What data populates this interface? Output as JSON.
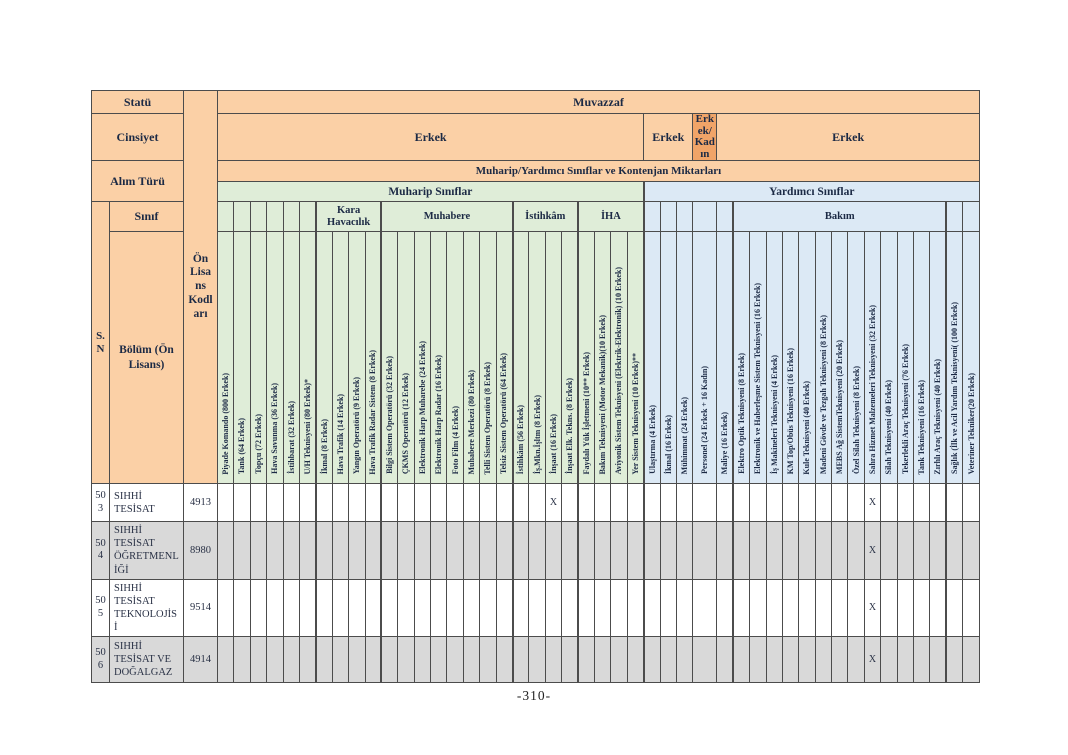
{
  "page": {
    "footer": "-310-"
  },
  "colors": {
    "header_bg": "#FBD0A6",
    "header_accent_bg": "#F0A468",
    "muharip_bg": "#DFEDD8",
    "yardimci_bg": "#DCE9F5",
    "shaded_row_bg": "#D9D9D9"
  },
  "left_headers": {
    "statu": "Statü",
    "cinsiyet": "Cinsiyet",
    "alim_turu": "Alım Türü",
    "sinif": "Sınıf",
    "sn": "S. N",
    "bolum": "Bölüm (Ön Lisans)",
    "on_lisans_kodlari": "Ön Lisans Kodları"
  },
  "top_headers": {
    "muvazzaf": "Muvazzaf",
    "gender_row": [
      {
        "label": "Erkek",
        "span": 26,
        "accent": false
      },
      {
        "label": "Erkek",
        "span": 3,
        "accent": false
      },
      {
        "label": "Erkek/ Kadın",
        "span": 1,
        "accent": true
      },
      {
        "label": "Erkek",
        "span": 16,
        "accent": false
      }
    ],
    "kontenjan": "Muharip/Yardımcı Sınıflar ve Kontenjan Miktarları",
    "class_row": [
      {
        "label": "Muharip Sınıflar",
        "span": 26,
        "section": "muharip"
      },
      {
        "label": "Yardımcı Sınıflar",
        "span": 20,
        "section": "yardimci"
      }
    ],
    "group_row": [
      {
        "blank": 6,
        "section": "muharip"
      },
      {
        "label": "Kara Havacılık",
        "span": 4,
        "section": "muharip"
      },
      {
        "label": "Muhabere",
        "span": 8,
        "section": "muharip"
      },
      {
        "label": "İstihkâm",
        "span": 4,
        "section": "muharip"
      },
      {
        "label": "İHA",
        "span": 4,
        "section": "muharip"
      },
      {
        "blank": 5,
        "section": "yardimci"
      },
      {
        "label": "Bakım",
        "span": 13,
        "section": "yardimci"
      },
      {
        "blank": 2,
        "section": "yardimci"
      }
    ]
  },
  "columns": [
    {
      "label": "Piyade Komando (800 Erkek)",
      "section": "muharip"
    },
    {
      "label": "Tank (64 Erkek)",
      "section": "muharip"
    },
    {
      "label": "Topçu (72 Erkek)",
      "section": "muharip"
    },
    {
      "label": "Hava Savunma (36 Erkek)",
      "section": "muharip"
    },
    {
      "label": "İstihbarat (32 Erkek)",
      "section": "muharip"
    },
    {
      "label": "U/H Teknisyeni (80 Erkek)*",
      "section": "muharip"
    },
    {
      "label": "İkmal (8 Erkek)",
      "section": "muharip"
    },
    {
      "label": "Hava Trafik (14 Erkek)",
      "section": "muharip"
    },
    {
      "label": "Yangın Operatörü (9 Erkek)",
      "section": "muharip"
    },
    {
      "label": "Hava Trafik Radar Sistem (8 Erkek)",
      "section": "muharip"
    },
    {
      "label": "Bilgi Sistem Operatörü (32 Erkek)",
      "section": "muharip"
    },
    {
      "label": "ÇKMS Operatörü (12 Erkek)",
      "section": "muharip"
    },
    {
      "label": "Elektronik Harp Muharebe (24 Erkek)",
      "section": "muharip"
    },
    {
      "label": "Elektronik Harp Radar (16 Erkek)",
      "section": "muharip"
    },
    {
      "label": "Foto Film (4 Erkek)",
      "section": "muharip"
    },
    {
      "label": "Muhabere Merkezi (80 Erkek)",
      "section": "muharip"
    },
    {
      "label": "Telli Sistem Operatörü (8 Erkek)",
      "section": "muharip"
    },
    {
      "label": "Telsiz Sistem Operatörü (64 Erkek)",
      "section": "muharip"
    },
    {
      "label": "İstihkâm (56 Erkek)",
      "section": "muharip"
    },
    {
      "label": "İş.Mkn.İşltm (8 Erkek)",
      "section": "muharip"
    },
    {
      "label": "İnşaat (16 Erkek)",
      "section": "muharip"
    },
    {
      "label": "İnşaat Elk. Tekns. (8 Erkek)",
      "section": "muharip"
    },
    {
      "label": "Faydalı Yük İşletmeni (10** Erkek)",
      "section": "muharip"
    },
    {
      "label": "Bakım Teknisyeni (Motor Mekanik)(10 Erkek)",
      "section": "muharip"
    },
    {
      "label": "Aviyonik Sistem Teknisyeni (Elektrik-Elektronik) (10 Erkek)",
      "section": "muharip"
    },
    {
      "label": "Yer Sistem Teknisyeni (10 Erkek)**",
      "section": "muharip"
    },
    {
      "label": "Ulaştırma (4 Erkek)",
      "section": "yardimci"
    },
    {
      "label": "İkmal (16 Erkek)",
      "section": "yardimci"
    },
    {
      "label": "Mühimmat (24 Erkek)",
      "section": "yardimci"
    },
    {
      "label": "Personel (24 Erkek + 16 Kadın)",
      "section": "yardimci"
    },
    {
      "label": "Maliye (16 Erkek)",
      "section": "yardimci"
    },
    {
      "label": "Elektro Optik Teknisyeni (8 Erkek)",
      "section": "yardimci"
    },
    {
      "label": "Elektronik ve Haberleşme Sistem Teknisyeni (16 Erkek)",
      "section": "yardimci"
    },
    {
      "label": "İş Makineleri Teknisyeni (4 Erkek)",
      "section": "yardimci"
    },
    {
      "label": "KM Top/Obüs Teknisyeni (16 Erkek)",
      "section": "yardimci"
    },
    {
      "label": "Kule Teknisyeni (40 Erkek)",
      "section": "yardimci"
    },
    {
      "label": "Madeni Gövde ve Tezgah Teknisyeni (8 Erkek)",
      "section": "yardimci"
    },
    {
      "label": "MEBS Ağ SistemTeknisyeni (20 Erkek)",
      "section": "yardimci"
    },
    {
      "label": "Özel Silah Teknisyeni (8 Erkek)",
      "section": "yardimci"
    },
    {
      "label": "Sahra Hizmet Malzemeleri Teknisyeni (32 Erkek)",
      "section": "yardimci"
    },
    {
      "label": "Silah Teknisyeni (40 Erkek)",
      "section": "yardimci"
    },
    {
      "label": "Tekerlekli Araç Teknisyeni (76 Erkek)",
      "section": "yardimci"
    },
    {
      "label": "Tank Teknisyeni (16 Erkek)",
      "section": "yardimci"
    },
    {
      "label": "Zırhlı Araç Teknisyeni (40 Erkek)",
      "section": "yardimci"
    },
    {
      "label": "Sağlık (İlk ve Acil Yardım Teknisyeni( (100 Erkek)",
      "section": "yardimci"
    },
    {
      "label": "Veteriner Tekniker(20 Erkek)",
      "section": "yardimci"
    }
  ],
  "rows": [
    {
      "sn": "503",
      "bolum": "SIHHİ TESİSAT",
      "kod": "4913",
      "marks": [
        {
          "col": 20,
          "text": "X"
        },
        {
          "col": 39,
          "text": "X"
        }
      ]
    },
    {
      "sn": "504",
      "bolum": "SIHHİ TESİSAT ÖĞRETMENLİĞİ",
      "kod": "8980",
      "marks": [
        {
          "col": 39,
          "text": "X"
        }
      ]
    },
    {
      "sn": "505",
      "bolum": "SIHHİ TESİSAT TEKNOLOJİSİ",
      "kod": "9514",
      "marks": [
        {
          "col": 39,
          "text": "X"
        }
      ]
    },
    {
      "sn": "506",
      "bolum": "SIHHİ TESİSAT VE DOĞALGAZ",
      "kod": "4914",
      "marks": [
        {
          "col": 39,
          "text": "X"
        }
      ]
    }
  ]
}
